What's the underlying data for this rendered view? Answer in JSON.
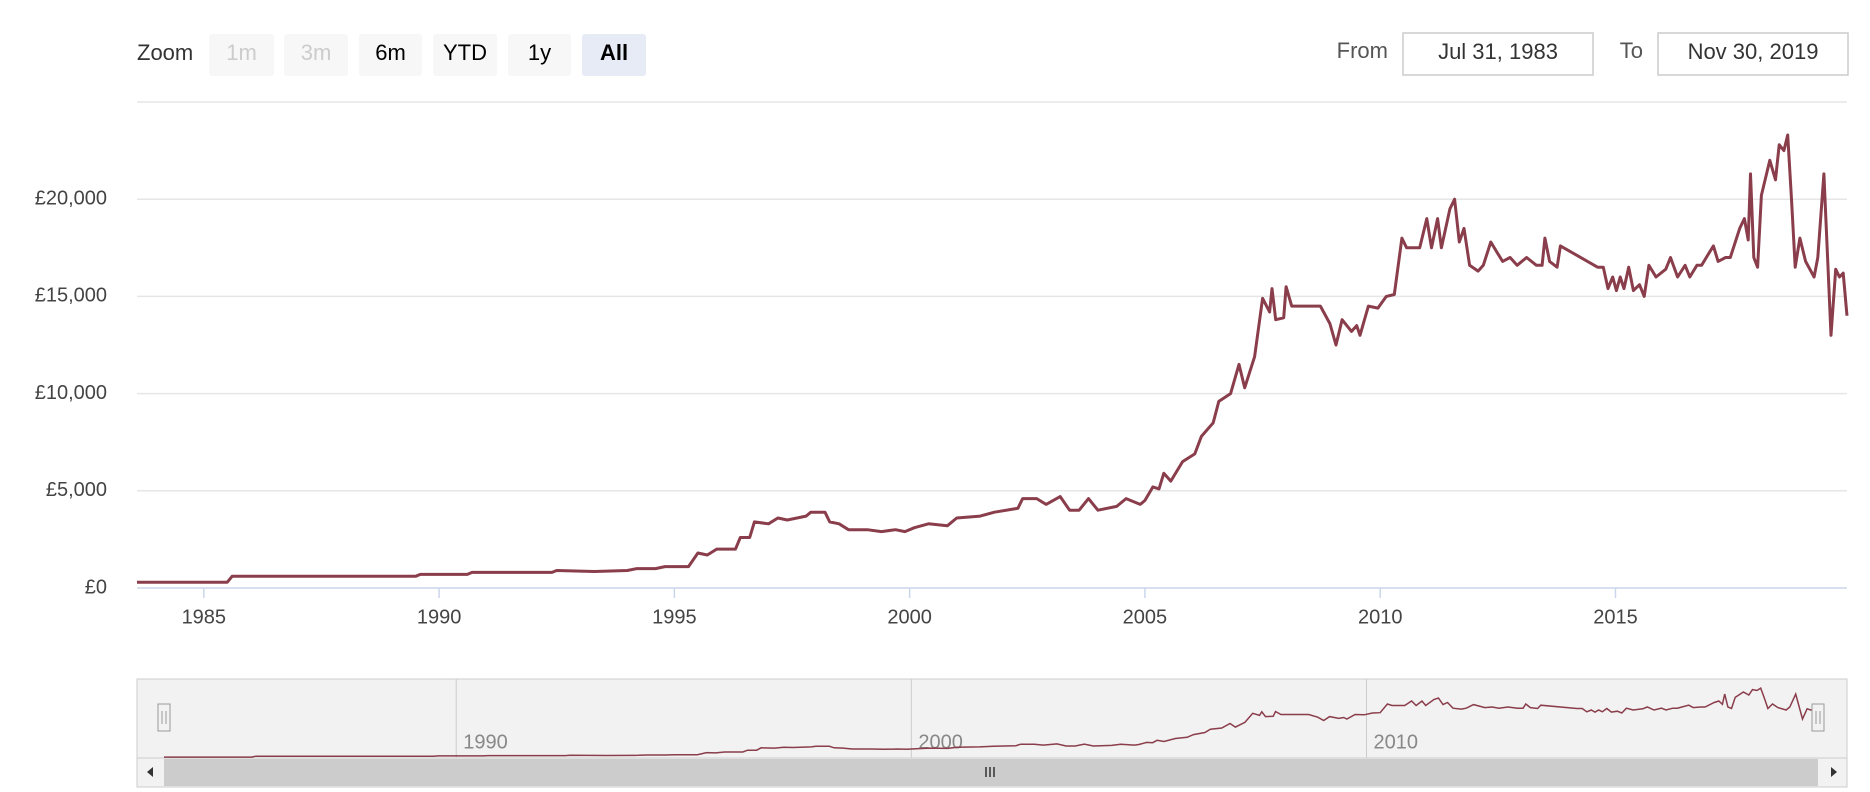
{
  "range_selector": {
    "zoom_label": "Zoom",
    "buttons": [
      {
        "label": "1m",
        "enabled": false
      },
      {
        "label": "3m",
        "enabled": false
      },
      {
        "label": "6m",
        "enabled": true
      },
      {
        "label": "YTD",
        "enabled": true
      },
      {
        "label": "1y",
        "enabled": true
      },
      {
        "label": "All",
        "enabled": true,
        "selected": true
      }
    ],
    "from_label": "From",
    "from": "Jul 31, 1983",
    "to_label": "To",
    "to": "Nov 30, 2019"
  },
  "chart_data": {
    "type": "line",
    "color": "#8a3d4b",
    "grid": true,
    "xlim": [
      1983.58,
      2019.92
    ],
    "xticks": [
      1985,
      1990,
      1995,
      2000,
      2005,
      2010,
      2015
    ],
    "ylim": [
      0,
      25000
    ],
    "yticks": [
      {
        "value": 0,
        "label": "£0"
      },
      {
        "value": 5000,
        "label": "£5,000"
      },
      {
        "value": 10000,
        "label": "£10,000"
      },
      {
        "value": 15000,
        "label": "£15,000"
      },
      {
        "value": 20000,
        "label": "£20,000"
      }
    ],
    "navigator_xticks": [
      1990,
      2000,
      2010
    ],
    "x": [
      1983.58,
      1985.5,
      1985.6,
      1989.5,
      1989.6,
      1990.6,
      1990.7,
      1992.4,
      1992.5,
      1993.3,
      1994.0,
      1994.2,
      1994.6,
      1994.8,
      1995.3,
      1995.5,
      1995.7,
      1995.9,
      1996.3,
      1996.4,
      1996.6,
      1996.7,
      1997.0,
      1997.2,
      1997.4,
      1997.8,
      1997.9,
      1998.2,
      1998.3,
      1998.5,
      1998.7,
      1999.1,
      1999.4,
      1999.7,
      1999.9,
      2000.1,
      2000.4,
      2000.8,
      2001.0,
      2001.5,
      2001.8,
      2002.3,
      2002.4,
      2002.7,
      2002.9,
      2003.2,
      2003.4,
      2003.6,
      2003.8,
      2004.0,
      2004.4,
      2004.6,
      2004.9,
      2005.0,
      2005.17,
      2005.3,
      2005.4,
      2005.55,
      2005.8,
      2006.06,
      2006.2,
      2006.45,
      2006.57,
      2006.82,
      2007.0,
      2007.12,
      2007.33,
      2007.5,
      2007.65,
      2007.7,
      2007.78,
      2007.95,
      2008.0,
      2008.12,
      2008.73,
      2008.93,
      2009.06,
      2009.19,
      2009.39,
      2009.5,
      2009.57,
      2009.75,
      2009.95,
      2010.13,
      2010.3,
      2010.46,
      2010.56,
      2010.84,
      2010.99,
      2011.09,
      2011.22,
      2011.3,
      2011.48,
      2011.58,
      2011.68,
      2011.78,
      2011.9,
      2012.08,
      2012.19,
      2012.35,
      2012.5,
      2012.6,
      2012.76,
      2012.91,
      2013.11,
      2013.32,
      2013.44,
      2013.5,
      2013.6,
      2013.76,
      2013.83,
      2014.62,
      2014.74,
      2014.84,
      2014.94,
      2015.02,
      2015.1,
      2015.18,
      2015.28,
      2015.38,
      2015.51,
      2015.61,
      2015.71,
      2015.86,
      2016.07,
      2016.17,
      2016.32,
      2016.48,
      2016.58,
      2016.73,
      2016.83,
      2016.93,
      2017.08,
      2017.18,
      2017.34,
      2017.44,
      2017.64,
      2017.74,
      2017.82,
      2017.87,
      2017.94,
      2018.02,
      2018.1,
      2018.28,
      2018.4,
      2018.48,
      2018.58,
      2018.66,
      2018.74,
      2018.82,
      2018.92,
      2019.04,
      2019.22,
      2019.3,
      2019.43,
      2019.58,
      2019.68,
      2019.76,
      2019.84,
      2019.92
    ],
    "values": [
      300,
      300,
      600,
      600,
      700,
      700,
      800,
      800,
      900,
      850,
      900,
      1000,
      1000,
      1100,
      1100,
      1800,
      1700,
      2000,
      2000,
      2600,
      2600,
      3400,
      3300,
      3600,
      3500,
      3700,
      3900,
      3900,
      3400,
      3300,
      3000,
      3000,
      2900,
      3000,
      2900,
      3100,
      3300,
      3200,
      3600,
      3700,
      3900,
      4100,
      4600,
      4600,
      4300,
      4700,
      4000,
      4000,
      4600,
      4000,
      4200,
      4600,
      4300,
      4500,
      5200,
      5100,
      5900,
      5500,
      6500,
      6900,
      7800,
      8500,
      9600,
      10000,
      11500,
      10300,
      11900,
      14900,
      14200,
      15400,
      13800,
      13900,
      15500,
      14500,
      14500,
      13600,
      12500,
      13800,
      13200,
      13500,
      13000,
      14500,
      14400,
      15000,
      15100,
      18000,
      17500,
      17500,
      19000,
      17500,
      19000,
      17500,
      19500,
      20000,
      17800,
      18500,
      16600,
      16300,
      16600,
      17800,
      17200,
      16800,
      17000,
      16600,
      17000,
      16600,
      16600,
      18000,
      16800,
      16500,
      17600,
      16500,
      16500,
      15400,
      16000,
      15300,
      16000,
      15400,
      16500,
      15300,
      15600,
      15000,
      16600,
      16000,
      16400,
      17000,
      16000,
      16600,
      16000,
      16600,
      16600,
      17000,
      17600,
      16800,
      17000,
      17000,
      18500,
      19000,
      17900,
      21300,
      17000,
      16500,
      20200,
      22000,
      21000,
      22800,
      22500,
      23300,
      20000,
      16500,
      18000,
      16800,
      16000,
      17000,
      21300,
      13000,
      16400,
      16000,
      16200,
      14000
    ]
  }
}
